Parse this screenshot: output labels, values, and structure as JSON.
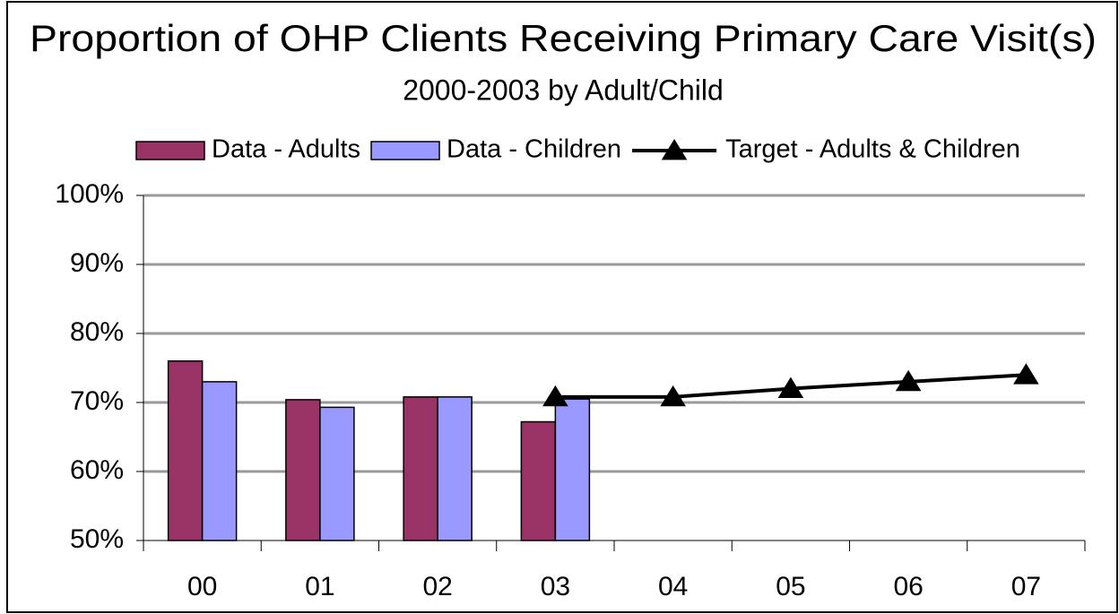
{
  "chart_data": {
    "type": "bar",
    "title": "Proportion of OHP Clients Receiving Primary Care Visit(s)",
    "subtitle": "2000-2003 by Adult/Child",
    "categories": [
      "00",
      "01",
      "02",
      "03",
      "04",
      "05",
      "06",
      "07"
    ],
    "series": [
      {
        "name": "Data - Adults",
        "color": "#993366",
        "type": "bar",
        "values": [
          76,
          70.4,
          70.8,
          67.2,
          null,
          null,
          null,
          null
        ]
      },
      {
        "name": "Data - Children",
        "color": "#9999ff",
        "type": "bar",
        "values": [
          73,
          69.3,
          70.8,
          70.5,
          null,
          null,
          null,
          null
        ]
      },
      {
        "name": "Target - Adults & Children",
        "color": "#000000",
        "type": "line",
        "values": [
          null,
          null,
          null,
          70.8,
          70.8,
          72,
          73,
          74
        ]
      }
    ],
    "ylim": [
      50,
      100
    ],
    "yticks": [
      {
        "value": 50,
        "label": "50%"
      },
      {
        "value": 60,
        "label": "60%"
      },
      {
        "value": 70,
        "label": "70%"
      },
      {
        "value": 80,
        "label": "80%"
      },
      {
        "value": 90,
        "label": "90%"
      },
      {
        "value": 100,
        "label": "100%"
      }
    ],
    "grid": true,
    "legend": "top"
  }
}
